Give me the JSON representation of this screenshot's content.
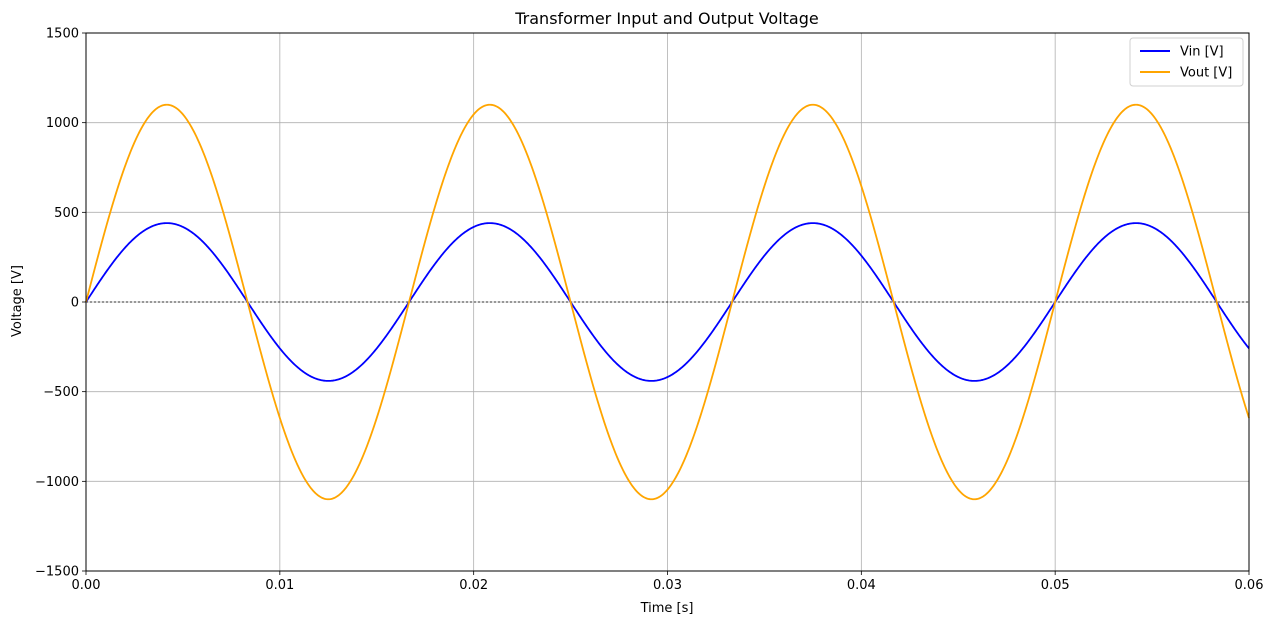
{
  "chart_data": {
    "type": "line",
    "title": "Transformer Input and Output Voltage",
    "xlabel": "Time [s]",
    "ylabel": "Voltage [V]",
    "xlim": [
      0,
      0.06
    ],
    "ylim": [
      -1500,
      1500
    ],
    "xticks": [
      0,
      0.01,
      0.02,
      0.03,
      0.04,
      0.05,
      0.06
    ],
    "xtick_labels": [
      "0.00",
      "0.01",
      "0.02",
      "0.03",
      "0.04",
      "0.05",
      "0.06"
    ],
    "yticks": [
      -1500,
      -1000,
      -500,
      0,
      500,
      1000,
      1500
    ],
    "ytick_labels": [
      "−1500",
      "−1000",
      "−500",
      "0",
      "500",
      "1000",
      "1500"
    ],
    "grid": true,
    "legend_position": "top-right",
    "zero_line": true,
    "series": [
      {
        "name": "Vin [V]",
        "color": "#0000ff",
        "amplitude": 440,
        "frequency_hz": 60,
        "function": "sine"
      },
      {
        "name": "Vout [V]",
        "color": "#ffa500",
        "amplitude": 1100,
        "frequency_hz": 60,
        "function": "sine"
      }
    ]
  }
}
